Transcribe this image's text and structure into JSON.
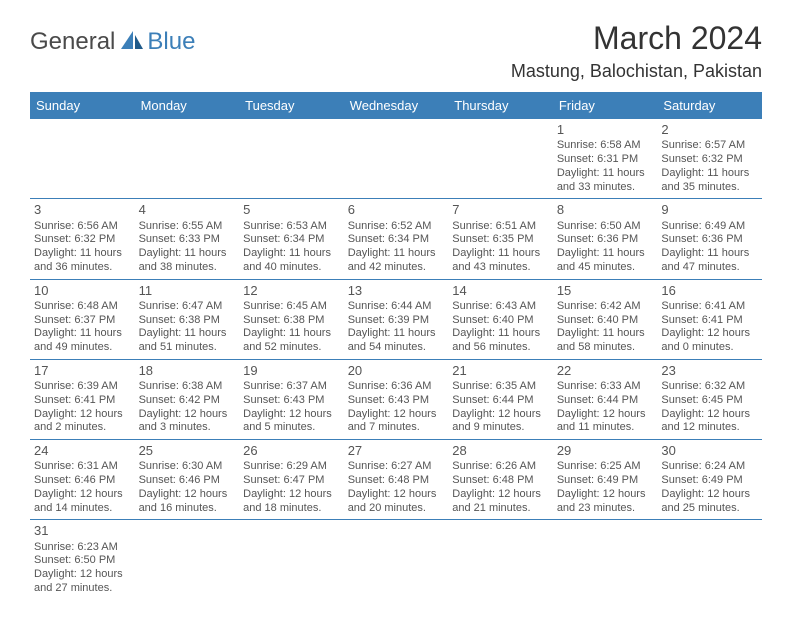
{
  "logo": {
    "text1": "General",
    "text2": "Blue"
  },
  "title": "March 2024",
  "location": "Mastung, Balochistan, Pakistan",
  "colors": {
    "header_bg": "#3c7fb8",
    "header_text": "#ffffff",
    "border": "#3c7fb8",
    "text": "#555555",
    "title_text": "#333333",
    "logo_gray": "#4a4a4a",
    "logo_blue": "#3c7fb8",
    "background": "#ffffff"
  },
  "weekdays": [
    "Sunday",
    "Monday",
    "Tuesday",
    "Wednesday",
    "Thursday",
    "Friday",
    "Saturday"
  ],
  "weeks": [
    [
      null,
      null,
      null,
      null,
      null,
      {
        "n": "1",
        "sr": "6:58 AM",
        "ss": "6:31 PM",
        "dl": "11 hours and 33 minutes."
      },
      {
        "n": "2",
        "sr": "6:57 AM",
        "ss": "6:32 PM",
        "dl": "11 hours and 35 minutes."
      }
    ],
    [
      {
        "n": "3",
        "sr": "6:56 AM",
        "ss": "6:32 PM",
        "dl": "11 hours and 36 minutes."
      },
      {
        "n": "4",
        "sr": "6:55 AM",
        "ss": "6:33 PM",
        "dl": "11 hours and 38 minutes."
      },
      {
        "n": "5",
        "sr": "6:53 AM",
        "ss": "6:34 PM",
        "dl": "11 hours and 40 minutes."
      },
      {
        "n": "6",
        "sr": "6:52 AM",
        "ss": "6:34 PM",
        "dl": "11 hours and 42 minutes."
      },
      {
        "n": "7",
        "sr": "6:51 AM",
        "ss": "6:35 PM",
        "dl": "11 hours and 43 minutes."
      },
      {
        "n": "8",
        "sr": "6:50 AM",
        "ss": "6:36 PM",
        "dl": "11 hours and 45 minutes."
      },
      {
        "n": "9",
        "sr": "6:49 AM",
        "ss": "6:36 PM",
        "dl": "11 hours and 47 minutes."
      }
    ],
    [
      {
        "n": "10",
        "sr": "6:48 AM",
        "ss": "6:37 PM",
        "dl": "11 hours and 49 minutes."
      },
      {
        "n": "11",
        "sr": "6:47 AM",
        "ss": "6:38 PM",
        "dl": "11 hours and 51 minutes."
      },
      {
        "n": "12",
        "sr": "6:45 AM",
        "ss": "6:38 PM",
        "dl": "11 hours and 52 minutes."
      },
      {
        "n": "13",
        "sr": "6:44 AM",
        "ss": "6:39 PM",
        "dl": "11 hours and 54 minutes."
      },
      {
        "n": "14",
        "sr": "6:43 AM",
        "ss": "6:40 PM",
        "dl": "11 hours and 56 minutes."
      },
      {
        "n": "15",
        "sr": "6:42 AM",
        "ss": "6:40 PM",
        "dl": "11 hours and 58 minutes."
      },
      {
        "n": "16",
        "sr": "6:41 AM",
        "ss": "6:41 PM",
        "dl": "12 hours and 0 minutes."
      }
    ],
    [
      {
        "n": "17",
        "sr": "6:39 AM",
        "ss": "6:41 PM",
        "dl": "12 hours and 2 minutes."
      },
      {
        "n": "18",
        "sr": "6:38 AM",
        "ss": "6:42 PM",
        "dl": "12 hours and 3 minutes."
      },
      {
        "n": "19",
        "sr": "6:37 AM",
        "ss": "6:43 PM",
        "dl": "12 hours and 5 minutes."
      },
      {
        "n": "20",
        "sr": "6:36 AM",
        "ss": "6:43 PM",
        "dl": "12 hours and 7 minutes."
      },
      {
        "n": "21",
        "sr": "6:35 AM",
        "ss": "6:44 PM",
        "dl": "12 hours and 9 minutes."
      },
      {
        "n": "22",
        "sr": "6:33 AM",
        "ss": "6:44 PM",
        "dl": "12 hours and 11 minutes."
      },
      {
        "n": "23",
        "sr": "6:32 AM",
        "ss": "6:45 PM",
        "dl": "12 hours and 12 minutes."
      }
    ],
    [
      {
        "n": "24",
        "sr": "6:31 AM",
        "ss": "6:46 PM",
        "dl": "12 hours and 14 minutes."
      },
      {
        "n": "25",
        "sr": "6:30 AM",
        "ss": "6:46 PM",
        "dl": "12 hours and 16 minutes."
      },
      {
        "n": "26",
        "sr": "6:29 AM",
        "ss": "6:47 PM",
        "dl": "12 hours and 18 minutes."
      },
      {
        "n": "27",
        "sr": "6:27 AM",
        "ss": "6:48 PM",
        "dl": "12 hours and 20 minutes."
      },
      {
        "n": "28",
        "sr": "6:26 AM",
        "ss": "6:48 PM",
        "dl": "12 hours and 21 minutes."
      },
      {
        "n": "29",
        "sr": "6:25 AM",
        "ss": "6:49 PM",
        "dl": "12 hours and 23 minutes."
      },
      {
        "n": "30",
        "sr": "6:24 AM",
        "ss": "6:49 PM",
        "dl": "12 hours and 25 minutes."
      }
    ],
    [
      {
        "n": "31",
        "sr": "6:23 AM",
        "ss": "6:50 PM",
        "dl": "12 hours and 27 minutes."
      },
      null,
      null,
      null,
      null,
      null,
      null
    ]
  ],
  "labels": {
    "sunrise": "Sunrise:",
    "sunset": "Sunset:",
    "daylight": "Daylight:"
  }
}
